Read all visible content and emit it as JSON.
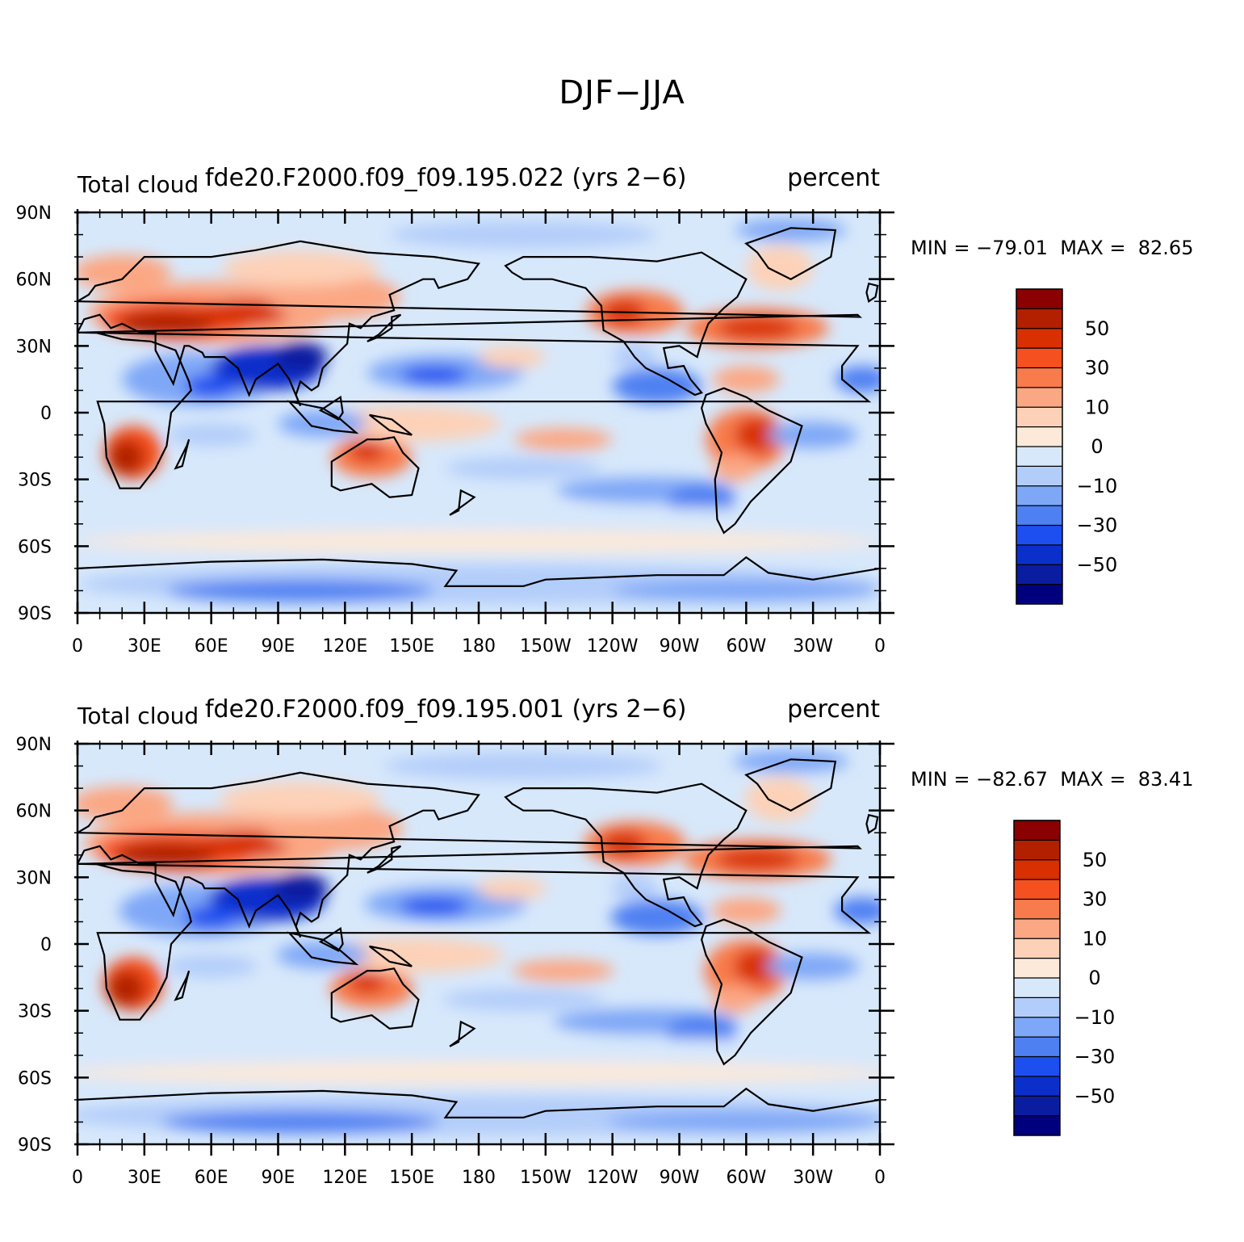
{
  "title": "DJF−JJA",
  "panels": [
    {
      "left_label": "Total cloud",
      "case_label": "fde20.F2000.f09_f09.195.022 (yrs 2−6)",
      "units_label": "percent",
      "min_label": "MIN = −79.01",
      "max_label": "MAX =  82.65"
    },
    {
      "left_label": "Total cloud",
      "case_label": "fde20.F2000.f09_f09.195.001 (yrs 2−6)",
      "units_label": "percent",
      "min_label": "MIN = −82.67",
      "max_label": "MAX =  83.41"
    }
  ],
  "lat_ticks": [
    "90N",
    "60N",
    "30N",
    "0",
    "30S",
    "60S",
    "90S"
  ],
  "lon_ticks": [
    "0",
    "30E",
    "60E",
    "90E",
    "120E",
    "150E",
    "180",
    "150W",
    "120W",
    "90W",
    "60W",
    "30W",
    "0"
  ],
  "colorbar": {
    "colors_top_to_bottom": [
      "#8b0000",
      "#b22000",
      "#d83000",
      "#f5501f",
      "#f87b4b",
      "#fba784",
      "#fdd1b7",
      "#fde9d9",
      "#d7e8fb",
      "#b3cdfa",
      "#7fa7f7",
      "#4f80f2",
      "#1d4ff0",
      "#0a2fcb",
      "#0a1da0",
      "#00007f"
    ],
    "labels": [
      "50",
      "30",
      "10",
      "0",
      "−10",
      "−30",
      "−50"
    ]
  },
  "colors": {
    "ocean_base": "#d7e8fb",
    "coastline": "#000000",
    "warm_max": "#8b0000",
    "cold_max": "#00007f"
  }
}
